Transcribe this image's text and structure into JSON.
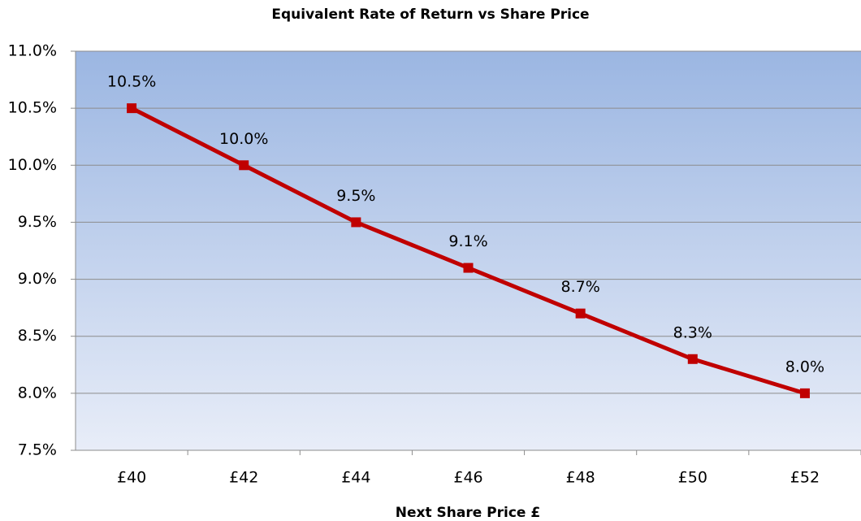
{
  "chart_data": {
    "type": "line",
    "title": "Equivalent Rate of Return vs Share Price",
    "x_label": "Next Share Price £",
    "categories": [
      "£40",
      "£42",
      "£44",
      "£46",
      "£48",
      "£50",
      "£52"
    ],
    "series": [
      {
        "name": "Equivalent Rate of Return",
        "color": "#c00000",
        "values": [
          10.5,
          10.0,
          9.5,
          9.1,
          8.7,
          8.3,
          8.0
        ],
        "value_labels": [
          "10.5%",
          "10.0%",
          "9.5%",
          "9.1%",
          "8.7%",
          "8.3%",
          "8.0%"
        ]
      }
    ],
    "ylim": [
      7.5,
      11
    ],
    "yticks": [
      {
        "value": 7.5,
        "label": "7.5%"
      },
      {
        "value": 8,
        "label": "8.0%"
      },
      {
        "value": 8.5,
        "label": "8.5%"
      },
      {
        "value": 9,
        "label": "9.0%"
      },
      {
        "value": 9.5,
        "label": "9.5%"
      },
      {
        "value": 10,
        "label": "10.0%"
      },
      {
        "value": 10.5,
        "label": "10.5%"
      },
      {
        "value": 11,
        "label": "11.0%"
      }
    ],
    "grid": true
  }
}
